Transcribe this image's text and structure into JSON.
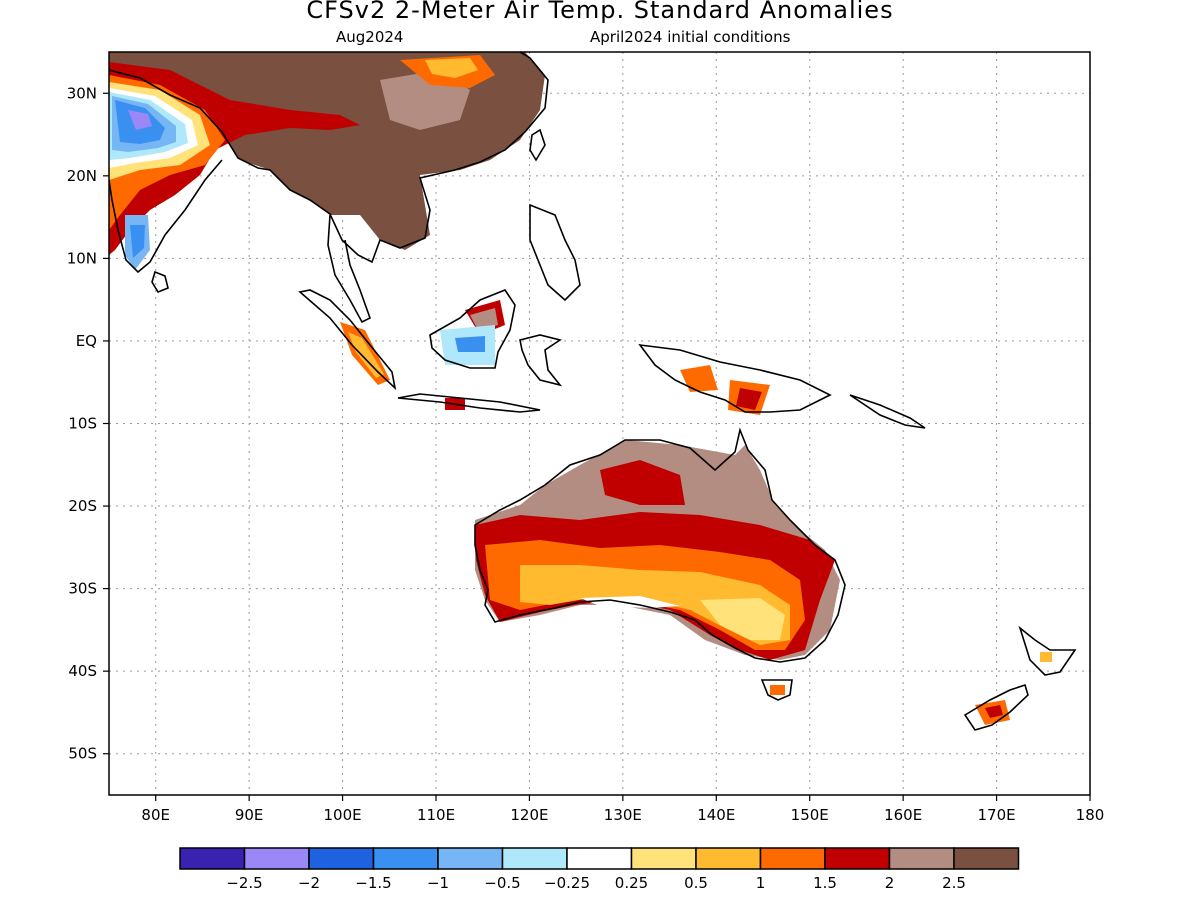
{
  "header": {
    "title": "CFSv2 2-Meter Air Temp. Standard Anomalies",
    "valid_month": "Aug2024",
    "init_conditions": "April2024 initial conditions"
  },
  "map": {
    "lon_range": [
      75,
      180
    ],
    "lat_range": [
      -55,
      35
    ],
    "lon_ticks": [
      {
        "lon": 80,
        "label": "80E"
      },
      {
        "lon": 90,
        "label": "90E"
      },
      {
        "lon": 100,
        "label": "100E"
      },
      {
        "lon": 110,
        "label": "110E"
      },
      {
        "lon": 120,
        "label": "120E"
      },
      {
        "lon": 130,
        "label": "130E"
      },
      {
        "lon": 140,
        "label": "140E"
      },
      {
        "lon": 150,
        "label": "150E"
      },
      {
        "lon": 160,
        "label": "160E"
      },
      {
        "lon": 170,
        "label": "170E"
      },
      {
        "lon": 180,
        "label": "180"
      }
    ],
    "lat_ticks": [
      {
        "lat": 30,
        "label": "30N"
      },
      {
        "lat": 20,
        "label": "20N"
      },
      {
        "lat": 10,
        "label": "10N"
      },
      {
        "lat": 0,
        "label": "EQ"
      },
      {
        "lat": -10,
        "label": "10S"
      },
      {
        "lat": -20,
        "label": "20S"
      },
      {
        "lat": -30,
        "label": "30S"
      },
      {
        "lat": -40,
        "label": "40S"
      },
      {
        "lat": -50,
        "label": "50S"
      }
    ],
    "grid": true
  },
  "colorbar": {
    "colors": [
      "#3a22b0",
      "#9b87f5",
      "#1f62e0",
      "#3a90f0",
      "#77b6f5",
      "#aee8fa",
      "#ffffff",
      "#ffe27a",
      "#ffba30",
      "#ff6a00",
      "#c00000",
      "#b48d82",
      "#7a5040"
    ],
    "labels": [
      "-2.5",
      "-2",
      "-1.5",
      "-1",
      "-0.5",
      "-0.25",
      "0.25",
      "0.5",
      "1",
      "1.5",
      "2",
      "2.5"
    ]
  }
}
